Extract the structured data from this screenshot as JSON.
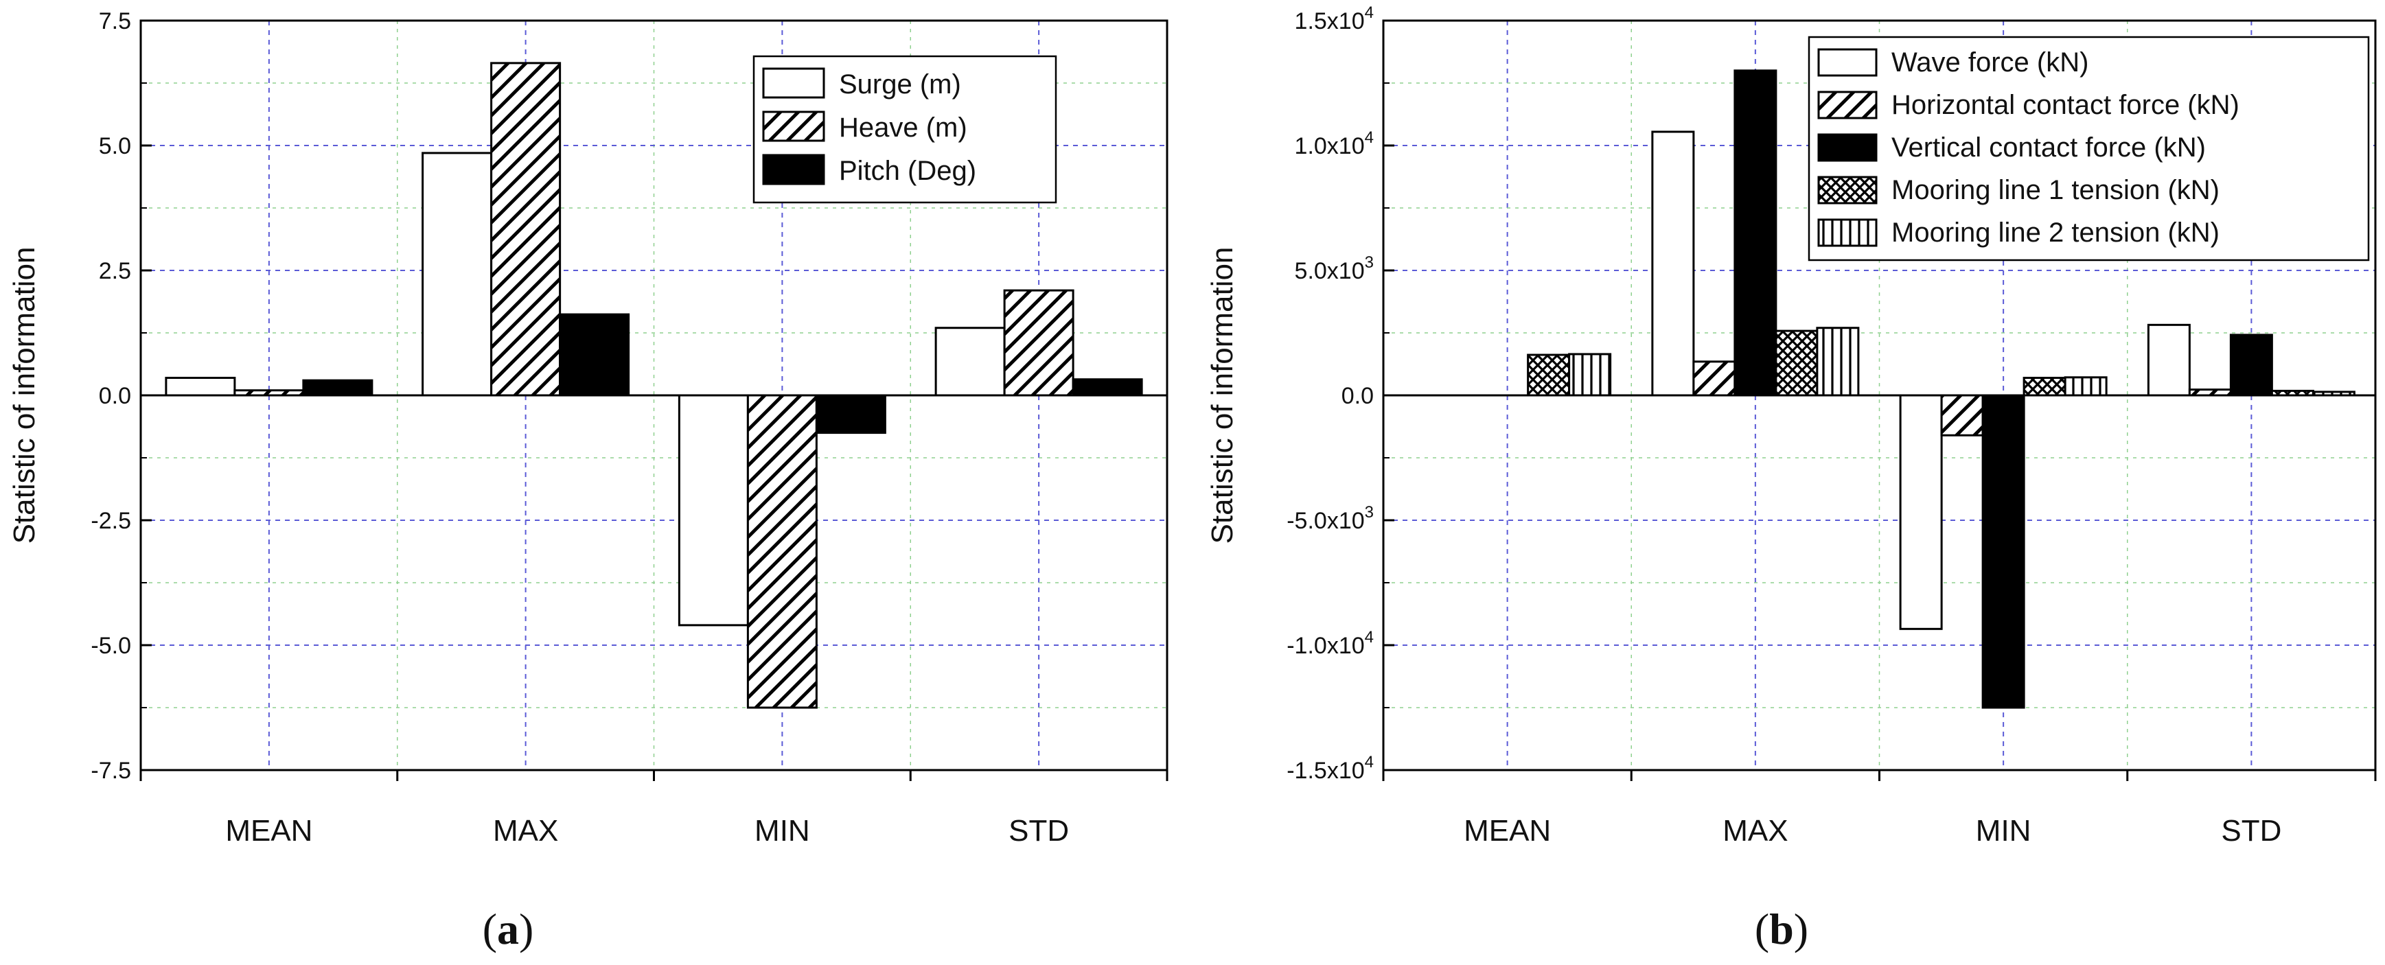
{
  "figure": {
    "panels": [
      {
        "label_open": "(",
        "label_letter": "a",
        "label_close": ")"
      },
      {
        "label_open": "(",
        "label_letter": "b",
        "label_close": ")"
      }
    ]
  },
  "chart_data": [
    {
      "type": "bar",
      "panel": "a",
      "title": "",
      "xlabel": "",
      "ylabel": "Statistic of information",
      "ylim": [
        -7.5,
        7.5
      ],
      "yticks": [
        -7.5,
        -5.0,
        -2.5,
        0.0,
        2.5,
        5.0,
        7.5
      ],
      "ytick_labels": [
        "-7.5",
        "-5.0",
        "-2.5",
        "0.0",
        "2.5",
        "5.0",
        "7.5"
      ],
      "categories": [
        "MEAN",
        "MAX",
        "MIN",
        "STD"
      ],
      "grid": true,
      "legend_position": "top-right",
      "series": [
        {
          "name": "Surge (m)",
          "pattern": "white",
          "values": [
            0.35,
            4.85,
            -4.6,
            1.35
          ]
        },
        {
          "name": "Heave (m)",
          "pattern": "hatch-diag",
          "values": [
            0.1,
            6.65,
            -6.25,
            2.1
          ]
        },
        {
          "name": "Pitch (Deg)",
          "pattern": "black",
          "values": [
            0.3,
            1.62,
            -0.75,
            0.32
          ]
        }
      ]
    },
    {
      "type": "bar",
      "panel": "b",
      "title": "",
      "xlabel": "",
      "ylabel": "Statistic of information",
      "ylim": [
        -15000,
        15000
      ],
      "yticks": [
        -15000,
        -10000,
        -5000,
        0,
        5000,
        10000,
        15000
      ],
      "ytick_labels": [
        {
          "mant": "-1.5x10",
          "exp": "4"
        },
        {
          "mant": "-1.0x10",
          "exp": "4"
        },
        {
          "mant": "-5.0x10",
          "exp": "3"
        },
        {
          "mant": "0.0",
          "exp": ""
        },
        {
          "mant": "5.0x10",
          "exp": "3"
        },
        {
          "mant": "1.0x10",
          "exp": "4"
        },
        {
          "mant": "1.5x10",
          "exp": "4"
        }
      ],
      "categories": [
        "MEAN",
        "MAX",
        "MIN",
        "STD"
      ],
      "grid": true,
      "legend_position": "top-right",
      "series": [
        {
          "name": "Wave force (kN)",
          "pattern": "white",
          "values": [
            0,
            10550,
            -9350,
            2820
          ]
        },
        {
          "name": "Horizontal contact force (kN)",
          "pattern": "hatch-diag",
          "values": [
            0,
            1350,
            -1600,
            230
          ]
        },
        {
          "name": "Vertical contact force (kN)",
          "pattern": "black",
          "values": [
            0,
            13000,
            -12500,
            2420
          ]
        },
        {
          "name": "Mooring line 1 tension (kN)",
          "pattern": "cross",
          "values": [
            1620,
            2580,
            700,
            180
          ]
        },
        {
          "name": "Mooring line 2 tension (kN)",
          "pattern": "vert",
          "values": [
            1650,
            2700,
            720,
            140
          ]
        }
      ]
    }
  ]
}
